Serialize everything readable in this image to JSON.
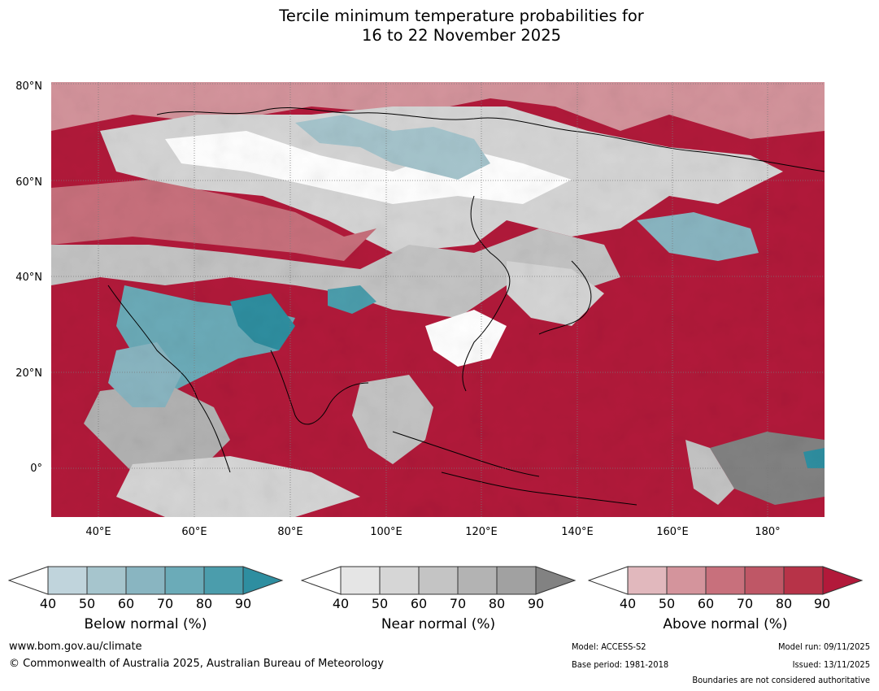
{
  "title": {
    "line1": "Tercile minimum temperature probabilities for",
    "line2": "16 to 22 November 2025"
  },
  "map": {
    "region": "Asia",
    "lat_labels": [
      "80°N",
      "60°N",
      "40°N",
      "20°N",
      "0°"
    ],
    "lon_labels": [
      "40°E",
      "60°E",
      "80°E",
      "100°E",
      "120°E",
      "140°E",
      "160°E",
      "180°"
    ]
  },
  "legend": {
    "below": {
      "title": "Below normal (%)",
      "ticks": [
        "40",
        "50",
        "60",
        "70",
        "80",
        "90"
      ],
      "colors": [
        "#ffffff",
        "#c0d4dc",
        "#a6c5cd",
        "#89b5c1",
        "#6babb8",
        "#4b9dac",
        "#2e8ea0"
      ]
    },
    "near": {
      "title": "Near normal (%)",
      "ticks": [
        "40",
        "50",
        "60",
        "70",
        "80",
        "90"
      ],
      "colors": [
        "#ffffff",
        "#e5e5e5",
        "#d6d6d6",
        "#c4c4c4",
        "#b3b3b3",
        "#a1a1a1",
        "#828282"
      ]
    },
    "above": {
      "title": "Above normal (%)",
      "ticks": [
        "40",
        "50",
        "60",
        "70",
        "80",
        "90"
      ],
      "colors": [
        "#ffffff",
        "#e1b8bd",
        "#d4949c",
        "#c8707c",
        "#bf5766",
        "#b73348",
        "#b2193a"
      ]
    }
  },
  "footer": {
    "website": "www.bom.gov.au/climate",
    "copyright": "© Commonwealth of Australia 2025, Australian Bureau of Meteorology",
    "model": "Model: ACCESS-S2",
    "base_period": "Base period: 1981-2018",
    "model_run": "Model run: 09/11/2025",
    "issued": "Issued: 13/11/2025",
    "disclaimer": "Boundaries are not considered authoritative"
  }
}
